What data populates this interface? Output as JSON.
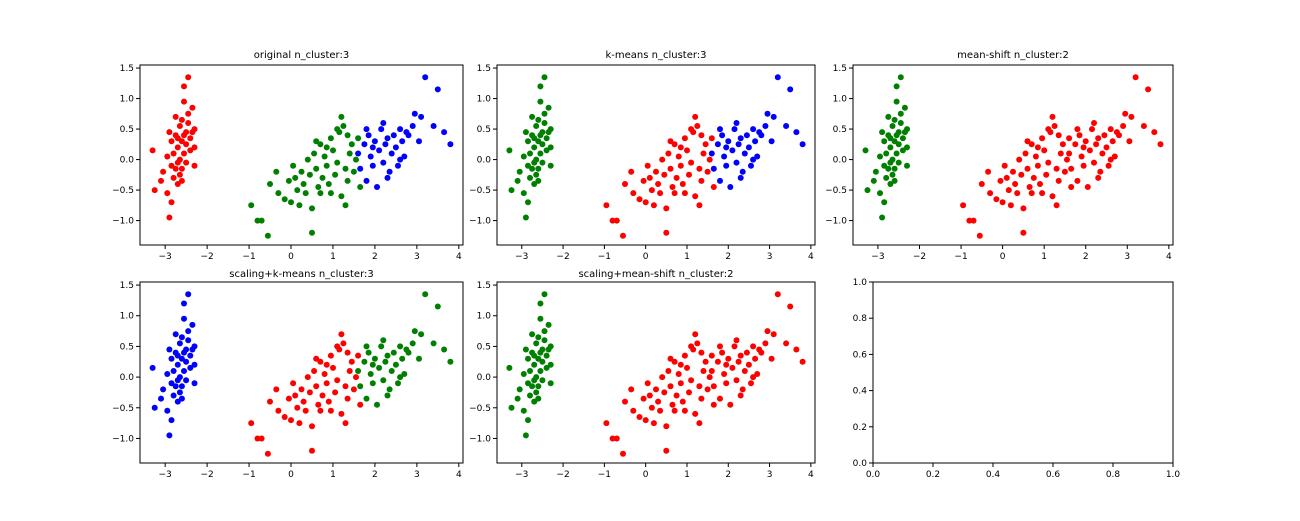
{
  "figure": {
    "background": "#ffffff"
  },
  "colors": {
    "red": "#ff0000",
    "green": "#008000",
    "blue": "#0000ff"
  },
  "chart_data": [
    {
      "id": "p1",
      "type": "scatter",
      "title": "original n_cluster:3",
      "xlim": [
        -3.6,
        4.1
      ],
      "ylim": [
        -1.4,
        1.55
      ],
      "xticks": [
        -3,
        -2,
        -1,
        0,
        1,
        2,
        3,
        4
      ],
      "yticks": [
        -1.0,
        -0.5,
        0.0,
        0.5,
        1.0,
        1.5
      ],
      "coloring": "original"
    },
    {
      "id": "p2",
      "type": "scatter",
      "title": "k-means n_cluster:3",
      "xlim": [
        -3.6,
        4.1
      ],
      "ylim": [
        -1.4,
        1.55
      ],
      "xticks": [
        -3,
        -2,
        -1,
        0,
        1,
        2,
        3,
        4
      ],
      "yticks": [
        -1.0,
        -0.5,
        0.0,
        0.5,
        1.0,
        1.5
      ],
      "coloring": "kmeans"
    },
    {
      "id": "p3",
      "type": "scatter",
      "title": "mean-shift n_cluster:2",
      "xlim": [
        -3.6,
        4.1
      ],
      "ylim": [
        -1.4,
        1.55
      ],
      "xticks": [
        -3,
        -2,
        -1,
        0,
        1,
        2,
        3,
        4
      ],
      "yticks": [
        -1.0,
        -0.5,
        0.0,
        0.5,
        1.0,
        1.5
      ],
      "coloring": "meanshift"
    },
    {
      "id": "p4",
      "type": "scatter",
      "title": "scaling+k-means n_cluster:3",
      "xlim": [
        -3.6,
        4.1
      ],
      "ylim": [
        -1.4,
        1.55
      ],
      "xticks": [
        -3,
        -2,
        -1,
        0,
        1,
        2,
        3,
        4
      ],
      "yticks": [
        -1.0,
        -0.5,
        0.0,
        0.5,
        1.0,
        1.5
      ],
      "coloring": "scaled_kmeans"
    },
    {
      "id": "p5",
      "type": "scatter",
      "title": "scaling+mean-shift n_cluster:2",
      "xlim": [
        -3.6,
        4.1
      ],
      "ylim": [
        -1.4,
        1.55
      ],
      "xticks": [
        -3,
        -2,
        -1,
        0,
        1,
        2,
        3,
        4
      ],
      "yticks": [
        -1.0,
        -0.5,
        0.0,
        0.5,
        1.0,
        1.5
      ],
      "coloring": "meanshift"
    },
    {
      "id": "p6",
      "type": "scatter",
      "title": "",
      "xlim": [
        0,
        1
      ],
      "ylim": [
        0,
        1
      ],
      "xticks": [
        0.0,
        0.2,
        0.4,
        0.6,
        0.8,
        1.0
      ],
      "yticks": [
        0.0,
        0.2,
        0.4,
        0.6,
        0.8,
        1.0
      ],
      "coloring": "empty"
    }
  ],
  "points": {
    "group_a": [
      [
        -3.3,
        0.15
      ],
      [
        -3.25,
        -0.5
      ],
      [
        -3.1,
        -0.35
      ],
      [
        -3.05,
        -0.2
      ],
      [
        -2.95,
        -0.55
      ],
      [
        -2.9,
        -0.95
      ],
      [
        -2.95,
        0.05
      ],
      [
        -2.85,
        -0.1
      ],
      [
        -2.85,
        0.3
      ],
      [
        -2.8,
        -0.3
      ],
      [
        -2.8,
        0.1
      ],
      [
        -2.75,
        -0.15
      ],
      [
        -2.75,
        0.4
      ],
      [
        -2.7,
        0.2
      ],
      [
        -2.7,
        -0.4
      ],
      [
        -2.7,
        -0.05
      ],
      [
        -2.65,
        0.55
      ],
      [
        -2.65,
        0.0
      ],
      [
        -2.65,
        -0.25
      ],
      [
        -2.6,
        0.3
      ],
      [
        -2.6,
        0.65
      ],
      [
        -2.6,
        -0.15
      ],
      [
        -2.55,
        0.95
      ],
      [
        -2.55,
        0.1
      ],
      [
        -2.55,
        1.2
      ],
      [
        -2.5,
        0.45
      ],
      [
        -2.5,
        -0.05
      ],
      [
        -2.5,
        0.25
      ],
      [
        -2.45,
        0.75
      ],
      [
        -2.45,
        0.6
      ],
      [
        -2.45,
        1.35
      ],
      [
        -2.4,
        0.35
      ],
      [
        -2.35,
        0.85
      ],
      [
        -2.3,
        0.5
      ],
      [
        -2.3,
        -0.1
      ],
      [
        -2.75,
        0.7
      ],
      [
        -2.9,
        0.45
      ],
      [
        -2.6,
        -0.35
      ],
      [
        -2.4,
        0.15
      ],
      [
        -2.3,
        0.2
      ],
      [
        -2.85,
        -0.7
      ],
      [
        -2.7,
        0.35
      ],
      [
        -2.55,
        0.4
      ],
      [
        -2.35,
        0.45
      ]
    ],
    "group_b": [
      [
        -0.95,
        -0.75
      ],
      [
        -0.8,
        -1.0
      ],
      [
        -0.7,
        -1.0
      ],
      [
        -0.55,
        -1.25
      ],
      [
        -0.5,
        -0.4
      ],
      [
        -0.35,
        -0.2
      ],
      [
        -0.3,
        -0.55
      ],
      [
        -0.15,
        -0.65
      ],
      [
        -0.05,
        -0.35
      ],
      [
        0.0,
        -0.7
      ],
      [
        0.05,
        -0.1
      ],
      [
        0.1,
        -0.3
      ],
      [
        0.15,
        -0.5
      ],
      [
        0.2,
        -0.75
      ],
      [
        0.25,
        -0.2
      ],
      [
        0.3,
        -0.4
      ],
      [
        0.35,
        -0.55
      ],
      [
        0.4,
        0.0
      ],
      [
        0.45,
        -0.25
      ],
      [
        0.5,
        -0.8
      ],
      [
        0.55,
        0.1
      ],
      [
        0.6,
        -0.15
      ],
      [
        0.65,
        -0.45
      ],
      [
        0.7,
        0.25
      ],
      [
        0.75,
        -0.3
      ],
      [
        0.8,
        0.05
      ],
      [
        0.85,
        -0.1
      ],
      [
        0.9,
        -0.4
      ],
      [
        0.95,
        0.35
      ],
      [
        1.0,
        0.15
      ],
      [
        1.05,
        -0.25
      ],
      [
        1.1,
        -0.05
      ],
      [
        1.15,
        0.45
      ],
      [
        1.2,
        -0.6
      ],
      [
        1.25,
        0.55
      ],
      [
        1.3,
        -0.15
      ],
      [
        1.3,
        -0.75
      ],
      [
        1.35,
        -0.35
      ],
      [
        1.4,
        0.1
      ],
      [
        1.45,
        0.25
      ],
      [
        1.5,
        -0.2
      ],
      [
        1.55,
        0.0
      ],
      [
        1.6,
        0.35
      ],
      [
        1.65,
        -0.45
      ],
      [
        0.6,
        0.3
      ],
      [
        0.95,
        -0.55
      ],
      [
        1.1,
        0.5
      ],
      [
        1.2,
        0.7
      ],
      [
        0.5,
        -1.2
      ],
      [
        0.85,
        0.2
      ],
      [
        1.35,
        0.4
      ],
      [
        0.7,
        -0.55
      ]
    ],
    "group_c": [
      [
        1.6,
        0.1
      ],
      [
        1.65,
        -0.15
      ],
      [
        1.75,
        0.25
      ],
      [
        1.8,
        -0.35
      ],
      [
        1.85,
        0.4
      ],
      [
        1.9,
        0.05
      ],
      [
        1.95,
        -0.1
      ],
      [
        2.0,
        0.3
      ],
      [
        2.05,
        -0.45
      ],
      [
        2.1,
        0.15
      ],
      [
        2.15,
        0.5
      ],
      [
        2.2,
        -0.05
      ],
      [
        2.25,
        0.25
      ],
      [
        2.3,
        0.35
      ],
      [
        2.35,
        -0.2
      ],
      [
        2.4,
        0.1
      ],
      [
        2.45,
        0.4
      ],
      [
        2.5,
        0.2
      ],
      [
        2.55,
        -0.1
      ],
      [
        2.6,
        0.5
      ],
      [
        2.65,
        0.3
      ],
      [
        2.7,
        0.05
      ],
      [
        2.8,
        0.4
      ],
      [
        2.9,
        0.55
      ],
      [
        2.95,
        0.75
      ],
      [
        3.05,
        0.3
      ],
      [
        3.1,
        0.7
      ],
      [
        3.2,
        1.35
      ],
      [
        3.4,
        0.55
      ],
      [
        3.5,
        1.15
      ],
      [
        3.65,
        0.45
      ],
      [
        3.8,
        0.25
      ],
      [
        1.8,
        0.5
      ],
      [
        2.2,
        0.6
      ],
      [
        2.6,
        0.0
      ],
      [
        1.95,
        0.2
      ],
      [
        2.3,
        -0.3
      ],
      [
        2.75,
        0.45
      ]
    ]
  }
}
